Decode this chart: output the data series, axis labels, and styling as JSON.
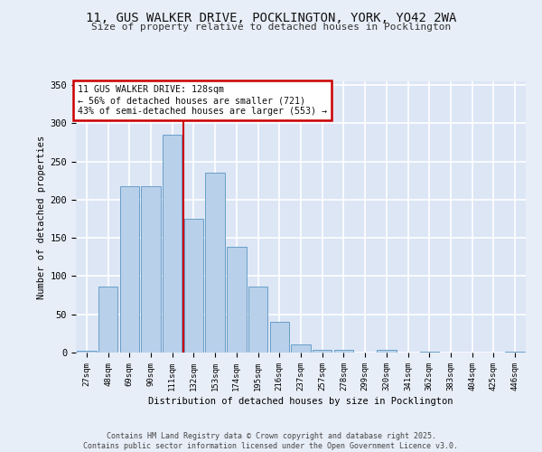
{
  "title_line1": "11, GUS WALKER DRIVE, POCKLINGTON, YORK, YO42 2WA",
  "title_line2": "Size of property relative to detached houses in Pocklington",
  "xlabel": "Distribution of detached houses by size in Pocklington",
  "ylabel": "Number of detached properties",
  "categories": [
    "27sqm",
    "48sqm",
    "69sqm",
    "90sqm",
    "111sqm",
    "132sqm",
    "153sqm",
    "174sqm",
    "195sqm",
    "216sqm",
    "237sqm",
    "257sqm",
    "278sqm",
    "299sqm",
    "320sqm",
    "341sqm",
    "362sqm",
    "383sqm",
    "404sqm",
    "425sqm",
    "446sqm"
  ],
  "values": [
    2,
    86,
    218,
    218,
    285,
    175,
    235,
    138,
    86,
    40,
    11,
    4,
    3,
    0,
    3,
    0,
    1,
    0,
    0,
    0,
    1
  ],
  "bar_color": "#b8d0ea",
  "bar_edge_color": "#6a9fc8",
  "background_color": "#dce6f5",
  "fig_background_color": "#e8eef8",
  "grid_color": "#ffffff",
  "vline_color": "#cc0000",
  "annotation_text": "11 GUS WALKER DRIVE: 128sqm\n← 56% of detached houses are smaller (721)\n43% of semi-detached houses are larger (553) →",
  "annotation_box_color": "#ffffff",
  "annotation_box_edge_color": "#cc0000",
  "ylim": [
    0,
    355
  ],
  "yticks": [
    0,
    50,
    100,
    150,
    200,
    250,
    300,
    350
  ],
  "footer": "Contains HM Land Registry data © Crown copyright and database right 2025.\nContains public sector information licensed under the Open Government Licence v3.0.",
  "figsize": [
    6.0,
    5.0
  ],
  "dpi": 100
}
